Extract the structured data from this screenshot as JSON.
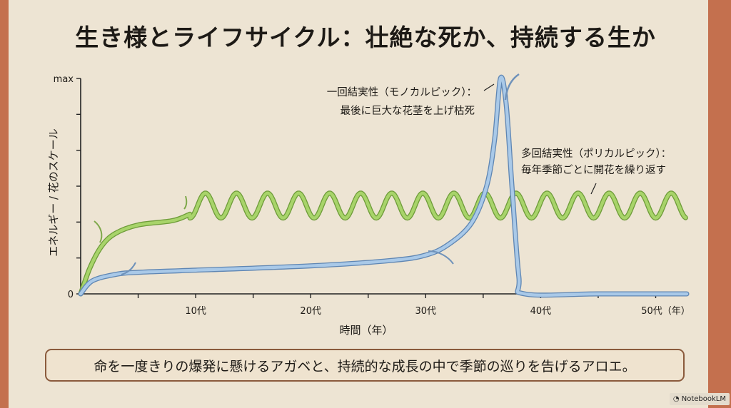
{
  "title": "生き様とライフサイクル：壮絶な死か、持続する生か",
  "caption": "命を一度きりの爆発に懸けるアガベと、持続的な成長の中で季節の巡りを告げるアロエ。",
  "badge": "NotebookLM",
  "colors": {
    "background": "#ede4d3",
    "border": "#c4704e",
    "blue_series": "#a9c9e8",
    "blue_outline": "#5f86b3",
    "green_series": "#a8d46a",
    "green_outline": "#6f9c3a"
  },
  "chart_data": {
    "type": "line",
    "title": "生き様とライフサイクル：壮絶な死か、持続する生か",
    "xlabel": "時間（年）",
    "ylabel": "エネルギー / 花のスケール",
    "xlim": [
      0,
      52.7
    ],
    "ylim": [
      0,
      1
    ],
    "y_tick_labels": {
      "min": "0",
      "max": "max"
    },
    "y_tick_count": 7,
    "x_minor_tick_step": 5,
    "x_tick_labels": [
      {
        "x": 10,
        "label": "10代"
      },
      {
        "x": 20,
        "label": "20代"
      },
      {
        "x": 30,
        "label": "30代"
      },
      {
        "x": 40,
        "label": "40代"
      },
      {
        "x": 50,
        "label": "50代（年）"
      }
    ],
    "grid": false,
    "series": [
      {
        "color": "#a9c9e8",
        "points": [
          [
            0,
            0
          ],
          [
            1,
            0.06
          ],
          [
            3,
            0.09
          ],
          [
            5,
            0.1
          ],
          [
            10,
            0.11
          ],
          [
            20,
            0.13
          ],
          [
            27,
            0.155
          ],
          [
            30,
            0.18
          ],
          [
            32,
            0.23
          ],
          [
            34,
            0.33
          ],
          [
            35.3,
            0.5
          ],
          [
            36,
            0.72
          ],
          [
            36.5,
            1.0
          ],
          [
            37,
            0.88
          ],
          [
            37.5,
            0.5
          ],
          [
            38.1,
            0.08
          ],
          [
            38.6,
            0
          ],
          [
            45,
            0
          ],
          [
            52.7,
            0
          ]
        ]
      },
      {
        "color": "#a8d46a",
        "points": [
          [
            0,
            0
          ],
          [
            0.8,
            0.12
          ],
          [
            1.8,
            0.22
          ],
          [
            3,
            0.28
          ],
          [
            5,
            0.32
          ],
          [
            8,
            0.34
          ],
          [
            9.5,
            0.37
          ]
        ],
        "oscillation": {
          "start": 9.5,
          "end": 52.7,
          "center": 0.41,
          "amplitude": 0.058,
          "period": 2.7
        }
      }
    ],
    "annotations": [
      {
        "lines": [
          "一回結実性（モノカルピック）：",
          "最後に巨大な花茎を上げ枯死"
        ]
      },
      {
        "lines": [
          "多回結実性（ポリカルピック）：",
          "毎年季節ごとに開花を繰り返す"
        ]
      }
    ]
  }
}
